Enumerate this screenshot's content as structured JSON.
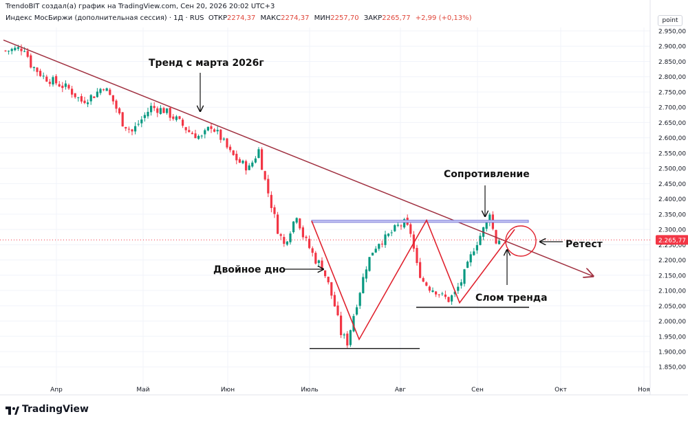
{
  "header": {
    "line1": "TrendoBIT создал(а) график на TradingView.com, Сен 20, 2026 20:02 UTC+3",
    "line2_prefix": "Индекс МосБиржи (дополнительная сессия) · 1Д · RUS",
    "ohlc": [
      {
        "label": "ОТКР",
        "value": "2274,37"
      },
      {
        "label": "МАКС",
        "value": "2274,37"
      },
      {
        "label": "МИН",
        "value": "2257,70"
      },
      {
        "label": "ЗАКР",
        "value": "2265,77"
      }
    ],
    "change": "+2,99 (+0,13%)"
  },
  "scale_button": "point",
  "branding": "TradingView",
  "colors": {
    "up": "#089981",
    "down": "#f23645",
    "trend": "#a03040",
    "pattern": "#e0222e",
    "resistance": "#7b7bd8",
    "price_tag": "#f23645"
  },
  "chart_data": {
    "type": "candlestick",
    "y_ticks": [
      "2.950,00",
      "2.900,00",
      "2.850,00",
      "2.800,00",
      "2.750,00",
      "2.700,00",
      "2.650,00",
      "2.600,00",
      "2.550,00",
      "2.500,00",
      "2.450,00",
      "2.400,00",
      "2.350,00",
      "2.300,00",
      "2.250,00",
      "2.200,00",
      "2.150,00",
      "2.100,00",
      "2.050,00",
      "2.000,00",
      "1.950,00",
      "1.900,00",
      "1.850,00"
    ],
    "ylim": [
      1810,
      2970
    ],
    "x_ticks": [
      "Апр",
      "Май",
      "Июн",
      "Июль",
      "Авг",
      "Сен",
      "Окт",
      "Ноя"
    ],
    "last_price": {
      "value": 2265.77,
      "label": "2.265,77"
    },
    "close_path": [
      [
        0,
        2885
      ],
      [
        6,
        2895
      ],
      [
        8,
        2840
      ],
      [
        12,
        2800
      ],
      [
        16,
        2780
      ],
      [
        20,
        2760
      ],
      [
        24,
        2720
      ],
      [
        28,
        2740
      ],
      [
        31,
        2770
      ],
      [
        34,
        2720
      ],
      [
        37,
        2650
      ],
      [
        40,
        2620
      ],
      [
        43,
        2660
      ],
      [
        46,
        2700
      ],
      [
        50,
        2690
      ],
      [
        54,
        2660
      ],
      [
        58,
        2620
      ],
      [
        62,
        2600
      ],
      [
        65,
        2640
      ],
      [
        68,
        2600
      ],
      [
        71,
        2550
      ],
      [
        74,
        2520
      ],
      [
        77,
        2500
      ],
      [
        80,
        2560
      ],
      [
        82,
        2460
      ],
      [
        84,
        2380
      ],
      [
        86,
        2300
      ],
      [
        88,
        2250
      ],
      [
        90,
        2300
      ],
      [
        92,
        2350
      ],
      [
        94,
        2280
      ],
      [
        96,
        2240
      ],
      [
        98,
        2200
      ],
      [
        100,
        2180
      ],
      [
        102,
        2120
      ],
      [
        104,
        2050
      ],
      [
        106,
        1960
      ],
      [
        108,
        1930
      ],
      [
        110,
        2020
      ],
      [
        112,
        2100
      ],
      [
        114,
        2180
      ],
      [
        116,
        2230
      ],
      [
        118,
        2260
      ],
      [
        120,
        2270
      ],
      [
        122,
        2290
      ],
      [
        124,
        2310
      ],
      [
        126,
        2320
      ],
      [
        128,
        2290
      ],
      [
        130,
        2180
      ],
      [
        132,
        2130
      ],
      [
        134,
        2110
      ],
      [
        136,
        2100
      ],
      [
        138,
        2080
      ],
      [
        140,
        2070
      ],
      [
        142,
        2090
      ],
      [
        144,
        2130
      ],
      [
        146,
        2180
      ],
      [
        148,
        2240
      ],
      [
        150,
        2280
      ],
      [
        152,
        2320
      ],
      [
        153,
        2360
      ],
      [
        154,
        2300
      ],
      [
        155,
        2260
      ],
      [
        156,
        2266
      ]
    ],
    "trendline": {
      "x": [
        "Мар",
        "Окт"
      ],
      "y": [
        2920,
        2150
      ]
    },
    "resistance": {
      "y_top": 2330,
      "y_bottom": 2323
    },
    "double_bottom": {
      "support1": 1910,
      "support2": 2045
    },
    "annotations": [
      {
        "id": "trend",
        "text": "Тренд с марта 2026г"
      },
      {
        "id": "resistance",
        "text": "Сопротивление"
      },
      {
        "id": "double-bottom",
        "text": "Двойное дно"
      },
      {
        "id": "break",
        "text": "Слом тренда"
      },
      {
        "id": "retest",
        "text": "Ретест"
      }
    ]
  }
}
